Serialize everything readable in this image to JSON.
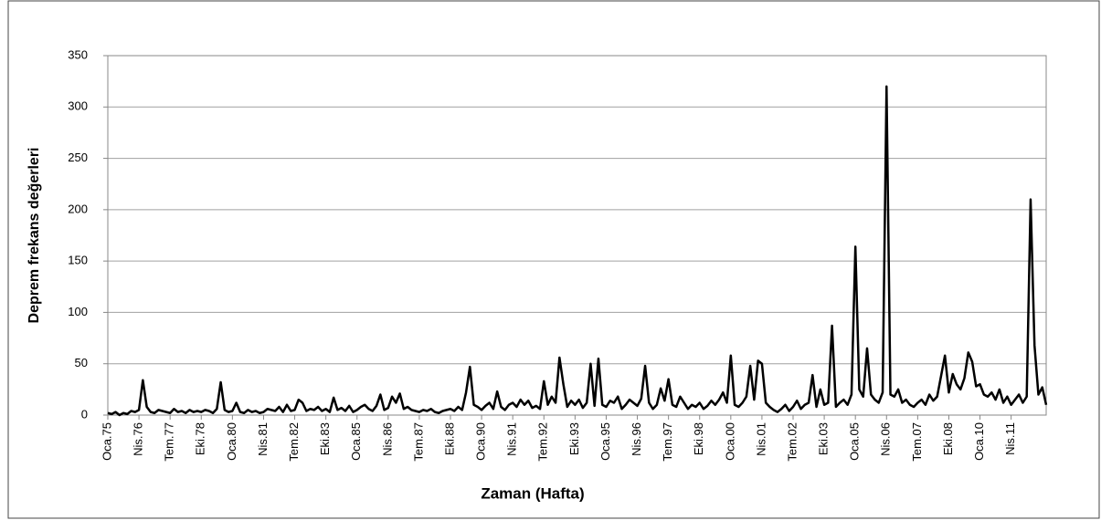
{
  "chart_data": {
    "type": "line",
    "y_label": "Deprem frekans değerleri",
    "x_label": "Zaman (Hafta)",
    "color": "#000000",
    "grid": true,
    "ylim": [
      0,
      350
    ],
    "yticks": [
      0,
      50,
      100,
      150,
      200,
      250,
      300,
      350
    ],
    "categories": [
      "Oca.75",
      null,
      null,
      null,
      null,
      null,
      null,
      null,
      "Nis.76",
      null,
      null,
      null,
      null,
      null,
      null,
      null,
      "Tem.77",
      null,
      null,
      null,
      null,
      null,
      null,
      null,
      "Eki.78",
      null,
      null,
      null,
      null,
      null,
      null,
      null,
      "Oca.80",
      null,
      null,
      null,
      null,
      null,
      null,
      null,
      "Nis.81",
      null,
      null,
      null,
      null,
      null,
      null,
      null,
      "Tem.82",
      null,
      null,
      null,
      null,
      null,
      null,
      null,
      "Eki.83",
      null,
      null,
      null,
      null,
      null,
      null,
      null,
      "Oca.85",
      null,
      null,
      null,
      null,
      null,
      null,
      null,
      "Nis.86",
      null,
      null,
      null,
      null,
      null,
      null,
      null,
      "Tem.87",
      null,
      null,
      null,
      null,
      null,
      null,
      null,
      "Eki.88",
      null,
      null,
      null,
      null,
      null,
      null,
      null,
      "Oca.90",
      null,
      null,
      null,
      null,
      null,
      null,
      null,
      "Nis.91",
      null,
      null,
      null,
      null,
      null,
      null,
      null,
      "Tem.92",
      null,
      null,
      null,
      null,
      null,
      null,
      null,
      "Eki.93",
      null,
      null,
      null,
      null,
      null,
      null,
      null,
      "Oca.95",
      null,
      null,
      null,
      null,
      null,
      null,
      null,
      "Nis.96",
      null,
      null,
      null,
      null,
      null,
      null,
      null,
      "Tem.97",
      null,
      null,
      null,
      null,
      null,
      null,
      null,
      "Eki.98",
      null,
      null,
      null,
      null,
      null,
      null,
      null,
      "Oca.00",
      null,
      null,
      null,
      null,
      null,
      null,
      null,
      "Nis.01",
      null,
      null,
      null,
      null,
      null,
      null,
      null,
      "Tem.02",
      null,
      null,
      null,
      null,
      null,
      null,
      null,
      "Eki.03",
      null,
      null,
      null,
      null,
      null,
      null,
      null,
      "Oca.05",
      null,
      null,
      null,
      null,
      null,
      null,
      null,
      "Nis.06",
      null,
      null,
      null,
      null,
      null,
      null,
      null,
      "Tem.07",
      null,
      null,
      null,
      null,
      null,
      null,
      null,
      "Eki.08",
      null,
      null,
      null,
      null,
      null,
      null,
      null,
      "Oca.10",
      null,
      null,
      null,
      null,
      null,
      null,
      null,
      "Nis.11",
      null,
      null,
      null,
      null,
      null,
      null,
      null,
      null,
      null
    ],
    "values": [
      2,
      1,
      3,
      0,
      2,
      1,
      4,
      3,
      5,
      34,
      8,
      3,
      2,
      5,
      4,
      3,
      2,
      6,
      3,
      4,
      2,
      5,
      3,
      4,
      3,
      5,
      4,
      2,
      6,
      32,
      5,
      3,
      4,
      12,
      3,
      2,
      5,
      3,
      4,
      2,
      3,
      6,
      5,
      4,
      8,
      3,
      10,
      4,
      5,
      15,
      12,
      4,
      6,
      5,
      8,
      4,
      6,
      3,
      17,
      5,
      7,
      4,
      9,
      3,
      5,
      8,
      10,
      6,
      4,
      9,
      20,
      5,
      7,
      18,
      12,
      21,
      6,
      8,
      5,
      4,
      3,
      5,
      4,
      6,
      3,
      2,
      4,
      5,
      6,
      4,
      8,
      5,
      22,
      47,
      10,
      8,
      5,
      9,
      12,
      6,
      23,
      8,
      5,
      10,
      12,
      8,
      15,
      10,
      14,
      7,
      9,
      6,
      33,
      10,
      18,
      12,
      56,
      30,
      8,
      14,
      10,
      15,
      7,
      12,
      50,
      9,
      55,
      10,
      8,
      14,
      12,
      18,
      6,
      10,
      15,
      12,
      9,
      16,
      48,
      12,
      6,
      10,
      26,
      14,
      35,
      10,
      8,
      18,
      12,
      6,
      10,
      8,
      12,
      6,
      9,
      14,
      10,
      15,
      22,
      12,
      58,
      10,
      8,
      12,
      18,
      48,
      15,
      53,
      50,
      12,
      8,
      5,
      3,
      6,
      10,
      4,
      8,
      14,
      6,
      10,
      12,
      39,
      8,
      25,
      10,
      12,
      87,
      8,
      12,
      15,
      10,
      20,
      164,
      25,
      18,
      65,
      20,
      15,
      12,
      22,
      320,
      20,
      18,
      25,
      12,
      15,
      10,
      8,
      12,
      15,
      10,
      20,
      14,
      18,
      38,
      58,
      22,
      40,
      30,
      25,
      36,
      61,
      52,
      28,
      30,
      20,
      18,
      22,
      15,
      25,
      12,
      18,
      10,
      15,
      20,
      12,
      18,
      210,
      68,
      20,
      27,
      10
    ]
  }
}
